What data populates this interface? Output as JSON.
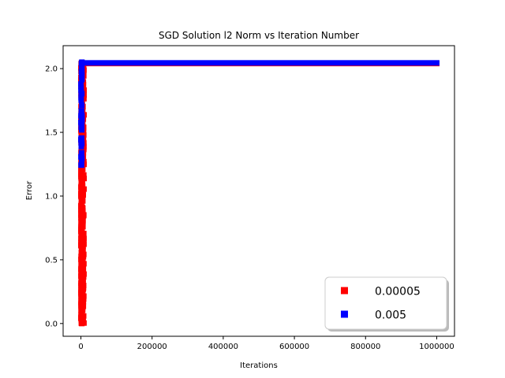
{
  "chart_data": {
    "type": "scatter",
    "title": "SGD Solution l2 Norm vs Iteration Number",
    "xlabel": "Iterations",
    "ylabel": "Error",
    "xlim": [
      -50000,
      1050000
    ],
    "ylim": [
      -0.1,
      2.18
    ],
    "xticks": [
      0,
      200000,
      400000,
      600000,
      800000,
      1000000
    ],
    "xtick_labels": [
      "0",
      "200000",
      "400000",
      "600000",
      "800000",
      "1000000"
    ],
    "yticks": [
      0.0,
      0.5,
      1.0,
      1.5,
      2.0
    ],
    "ytick_labels": [
      "0.0",
      "0.5",
      "1.0",
      "1.5",
      "2.0"
    ],
    "grid": false,
    "legend_position": "lower-right",
    "marker": "square",
    "series": [
      {
        "name": "0.00005",
        "color": "#ff0000",
        "early_x_range": [
          0,
          9000
        ],
        "early_y_range": [
          0.0,
          2.05
        ],
        "plateau_x_range": [
          9000,
          1000000
        ],
        "plateau_y": 2.04
      },
      {
        "name": "0.005",
        "color": "#0000ff",
        "early_x_range": [
          0,
          3000
        ],
        "early_y_range": [
          1.22,
          2.08
        ],
        "plateau_x_range": [
          3000,
          1000000
        ],
        "plateau_y": 2.045
      }
    ]
  }
}
